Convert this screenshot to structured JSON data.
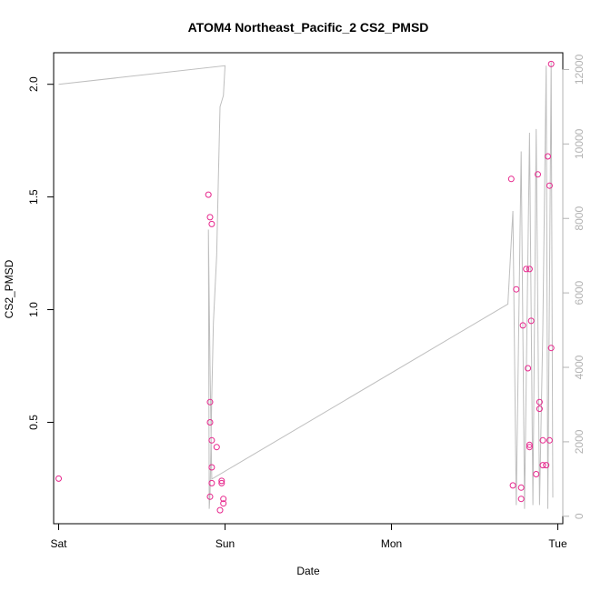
{
  "chart_data": {
    "type": "scatter",
    "title": "ATOM4 Northeast_Pacific_2 CS2_PMSD",
    "xlabel": "Date",
    "ylabel": "CS2_PMSD",
    "x_ticks": [
      "Sat",
      "Sun",
      "Mon",
      "Tue"
    ],
    "x_range_days": [
      -0.03,
      3.03
    ],
    "y_left": {
      "range": [
        0.05,
        2.14
      ],
      "ticks": [
        "0.5",
        "1.0",
        "1.5",
        "2.0"
      ],
      "tick_values": [
        0.5,
        1.0,
        1.5,
        2.0
      ]
    },
    "y_right": {
      "range": [
        -200,
        12450
      ],
      "ticks": [
        "0",
        "2000",
        "4000",
        "6000",
        "8000",
        "10000",
        "12000"
      ],
      "tick_values": [
        0,
        2000,
        4000,
        6000,
        8000,
        10000,
        12000
      ],
      "color": "#b3b3b3"
    },
    "series": [
      {
        "type": "scatter",
        "axis": "left",
        "color": "#e6268c",
        "points": [
          [
            0.0,
            0.25
          ],
          [
            0.9,
            1.51
          ],
          [
            0.91,
            1.41
          ],
          [
            0.92,
            1.38
          ],
          [
            0.91,
            0.59
          ],
          [
            0.91,
            0.5
          ],
          [
            0.92,
            0.42
          ],
          [
            0.95,
            0.39
          ],
          [
            0.92,
            0.3
          ],
          [
            0.92,
            0.23
          ],
          [
            0.98,
            0.24
          ],
          [
            0.98,
            0.23
          ],
          [
            0.91,
            0.17
          ],
          [
            0.99,
            0.16
          ],
          [
            0.99,
            0.14
          ],
          [
            0.97,
            0.11
          ],
          [
            2.72,
            1.58
          ],
          [
            2.75,
            1.09
          ],
          [
            2.81,
            1.18
          ],
          [
            2.83,
            1.18
          ],
          [
            2.79,
            0.93
          ],
          [
            2.84,
            0.95
          ],
          [
            2.82,
            0.74
          ],
          [
            2.83,
            0.4
          ],
          [
            2.83,
            0.39
          ],
          [
            2.73,
            0.22
          ],
          [
            2.78,
            0.21
          ],
          [
            2.78,
            0.16
          ],
          [
            2.88,
            1.6
          ],
          [
            2.94,
            1.68
          ],
          [
            2.95,
            1.55
          ],
          [
            2.96,
            2.09
          ],
          [
            2.96,
            0.83
          ],
          [
            2.89,
            0.59
          ],
          [
            2.89,
            0.56
          ],
          [
            2.91,
            0.42
          ],
          [
            2.95,
            0.42
          ],
          [
            2.91,
            0.31
          ],
          [
            2.93,
            0.31
          ],
          [
            2.87,
            0.27
          ]
        ]
      },
      {
        "type": "line",
        "axis": "right",
        "color": "#bebebe",
        "points": [
          [
            0.0,
            11600
          ],
          [
            1.0,
            12100
          ],
          [
            0.99,
            11300
          ],
          [
            0.97,
            11000
          ],
          [
            0.96,
            9100
          ],
          [
            0.95,
            7000
          ],
          [
            0.93,
            5200
          ],
          [
            0.92,
            3200
          ],
          [
            0.915,
            1800
          ],
          [
            0.91,
            600
          ],
          [
            0.905,
            200
          ],
          [
            0.9,
            7700
          ],
          [
            0.91,
            4000
          ],
          [
            0.92,
            1000
          ],
          [
            2.7,
            5700
          ],
          [
            2.73,
            8200
          ],
          [
            2.75,
            300
          ],
          [
            2.78,
            9800
          ],
          [
            2.8,
            200
          ],
          [
            2.83,
            10300
          ],
          [
            2.85,
            300
          ],
          [
            2.87,
            10400
          ],
          [
            2.89,
            300
          ],
          [
            2.91,
            5000
          ],
          [
            2.93,
            12100
          ],
          [
            2.94,
            200
          ],
          [
            2.96,
            12200
          ],
          [
            2.97,
            500
          ]
        ]
      }
    ]
  }
}
